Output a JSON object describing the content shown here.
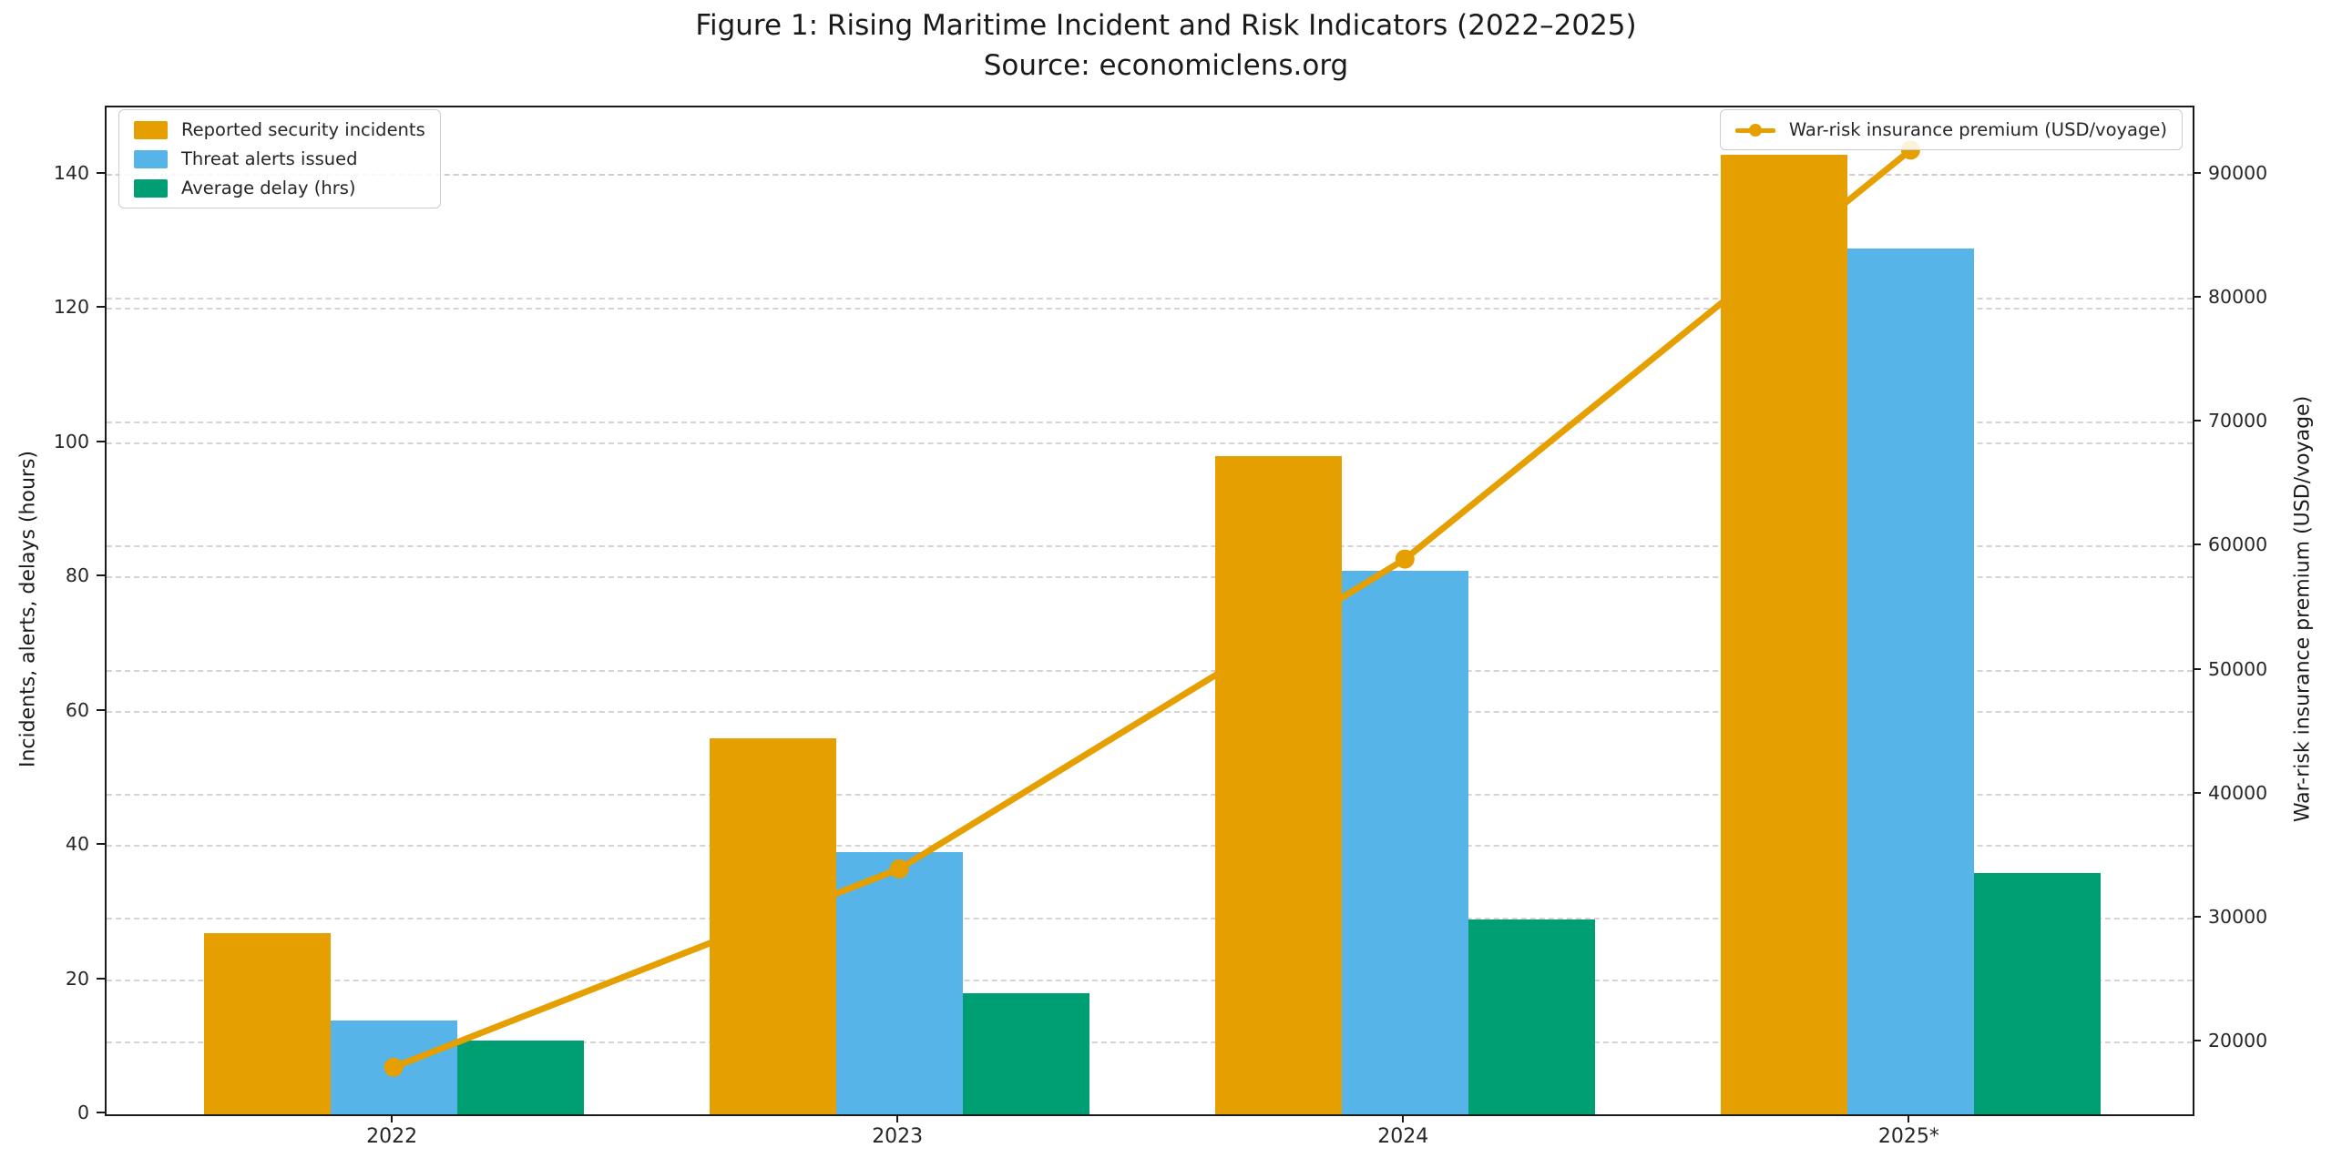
{
  "title": "Figure 1: Rising Maritime Incident and Risk Indicators (2022–2025)",
  "subtitle": "Source: economiclens.org",
  "chart_data": {
    "type": "bar",
    "subtype": "grouped-bars-with-line",
    "categories": [
      "2022",
      "2023",
      "2024",
      "2025*"
    ],
    "bar_series": [
      {
        "name": "Reported security incidents",
        "color": "#E69F00",
        "values": [
          27,
          56,
          98,
          143
        ],
        "axis": "left"
      },
      {
        "name": "Threat alerts issued",
        "color": "#56B4E9",
        "values": [
          14,
          39,
          81,
          129
        ],
        "axis": "left"
      },
      {
        "name": "Average delay (hrs)",
        "color": "#009E73",
        "values": [
          11,
          18,
          29,
          36
        ],
        "axis": "left"
      }
    ],
    "line_series": {
      "name": "War-risk insurance premium (USD/voyage)",
      "color": "#E69F00",
      "values": [
        18000,
        34000,
        59000,
        92000
      ],
      "axis": "right"
    },
    "left_axis": {
      "label": "Incidents, alerts, delays (hours)",
      "ticks": [
        0,
        20,
        40,
        60,
        80,
        100,
        120,
        140
      ],
      "range": [
        0,
        150
      ]
    },
    "right_axis": {
      "label": "War-risk insurance premium (USD/voyage)",
      "ticks": [
        20000,
        30000,
        40000,
        50000,
        60000,
        70000,
        80000,
        90000
      ],
      "range": [
        14200,
        95440
      ]
    },
    "grid": true,
    "legend_positions": {
      "bars": "upper left",
      "line": "upper right"
    },
    "colors": {
      "spine": "#1a1a1a",
      "gridline": "#cdcdcd",
      "tick_text": "#262626"
    }
  }
}
